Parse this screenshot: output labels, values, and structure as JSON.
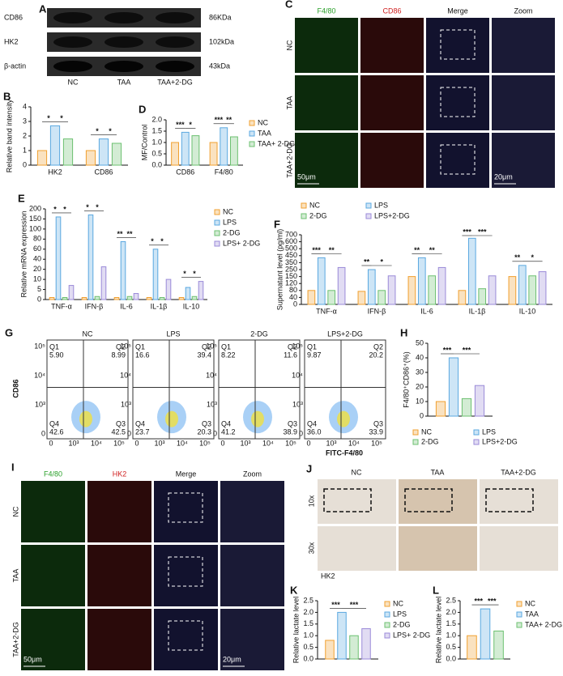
{
  "chart_data": [
    {
      "type": "bar",
      "panel": "B",
      "ylabel": "Relative band intensity",
      "categories": [
        "HK2",
        "CD86"
      ],
      "series": [
        {
          "name": "NC",
          "color": "#f0a030",
          "values": [
            1.0,
            1.0
          ]
        },
        {
          "name": "TAA",
          "color": "#5aa8e0",
          "values": [
            2.7,
            1.8
          ]
        },
        {
          "name": "TAA+2-DG",
          "color": "#6cc070",
          "values": [
            1.8,
            1.5
          ]
        }
      ],
      "ylim": [
        0,
        4
      ],
      "yticks": [
        0,
        1,
        2,
        3,
        4
      ],
      "significance": [
        [
          "*",
          "*"
        ],
        [
          "*",
          "*"
        ]
      ]
    },
    {
      "type": "bar",
      "panel": "D",
      "ylabel": "MF/Control",
      "categories": [
        "CD86",
        "F4/80"
      ],
      "series": [
        {
          "name": "NC",
          "color": "#f0a030",
          "values": [
            1.0,
            1.0
          ]
        },
        {
          "name": "TAA",
          "color": "#5aa8e0",
          "values": [
            1.45,
            1.65
          ]
        },
        {
          "name": "TAA+ 2-DG",
          "color": "#6cc070",
          "values": [
            1.3,
            1.25
          ]
        }
      ],
      "ylim": [
        0,
        2
      ],
      "yticks": [
        {
          "value": 0,
          "label": "0.0"
        },
        0.5,
        {
          "value": 1,
          "label": "1.0"
        },
        1.5,
        {
          "value": 2,
          "label": "2.0"
        }
      ],
      "legend": "right",
      "significance": [
        [
          "***",
          "*"
        ],
        [
          "***",
          "**"
        ]
      ]
    },
    {
      "type": "bar",
      "panel": "E",
      "ylabel": "Relative mRNA expression",
      "categories": [
        "TNF-α",
        "IFN-β",
        "IL-6",
        "IL-1β",
        "IL-10"
      ],
      "series": [
        {
          "name": "NC",
          "color": "#f0a030",
          "values": [
            1,
            1,
            1,
            1,
            1
          ]
        },
        {
          "name": "LPS",
          "color": "#5aa8e0",
          "values": [
            160,
            170,
            75,
            60,
            6
          ]
        },
        {
          "name": "2-DG",
          "color": "#6cc070",
          "values": [
            1,
            1.5,
            1.5,
            1,
            1.5
          ]
        },
        {
          "name": "LPS+ 2-DG",
          "color": "#9a8ad8",
          "values": [
            7,
            25,
            3,
            10,
            9
          ]
        }
      ],
      "ylim": [
        0,
        200
      ],
      "yticks": [
        0,
        5,
        10,
        20,
        40,
        60,
        80,
        100,
        150,
        200
      ],
      "axis_break": true,
      "legend": "right",
      "significance": [
        [
          "*",
          "*"
        ],
        [
          "*",
          "*"
        ],
        [
          "**",
          "**"
        ],
        [
          "*",
          "*"
        ],
        [
          "*",
          "*"
        ]
      ]
    },
    {
      "type": "bar",
      "panel": "F",
      "ylabel": "Supernatant level (pg/ml)",
      "categories": [
        "TNF-α",
        "IFN-β",
        "IL-6",
        "IL-1β",
        "IL-10"
      ],
      "series": [
        {
          "name": "NC",
          "color": "#f0a030",
          "values": [
            80,
            75,
            150,
            80,
            150
          ]
        },
        {
          "name": "LPS",
          "color": "#5aa8e0",
          "values": [
            420,
            250,
            420,
            650,
            310
          ]
        },
        {
          "name": "2-DG",
          "color": "#6cc070",
          "values": [
            80,
            80,
            160,
            90,
            160
          ]
        },
        {
          "name": "LPS+2-DG",
          "color": "#9a8ad8",
          "values": [
            280,
            160,
            280,
            160,
            220
          ]
        }
      ],
      "ylim": [
        0,
        700
      ],
      "yticks": [
        0,
        40,
        80,
        120,
        150,
        250,
        350,
        450,
        500,
        600,
        700
      ],
      "axis_break": true,
      "legend": "top",
      "significance": [
        [
          "***",
          "**"
        ],
        [
          "**",
          "*"
        ],
        [
          "**",
          "**"
        ],
        [
          "***",
          "***"
        ],
        [
          "**",
          "*"
        ]
      ]
    },
    {
      "type": "bar",
      "panel": "H",
      "ylabel": "F4/80⁺CD86⁺(%)",
      "categories": [
        null
      ],
      "series": [
        {
          "name": "NC",
          "color": "#f0a030",
          "values": [
            10
          ]
        },
        {
          "name": "LPS",
          "color": "#5aa8e0",
          "values": [
            40
          ]
        },
        {
          "name": "2-DG",
          "color": "#6cc070",
          "values": [
            12
          ]
        },
        {
          "name": "LPS+2-DG",
          "color": "#9a8ad8",
          "values": [
            21
          ]
        }
      ],
      "ylim": [
        0,
        50
      ],
      "yticks": [
        0,
        10,
        20,
        30,
        40,
        50
      ],
      "legend": "bottom",
      "significance": [
        [
          "***",
          "***"
        ]
      ]
    },
    {
      "type": "bar",
      "panel": "K",
      "ylabel": "Relative lactate level",
      "categories": [
        null
      ],
      "series": [
        {
          "name": "NC",
          "color": "#f0a030",
          "values": [
            0.8
          ]
        },
        {
          "name": "LPS",
          "color": "#5aa8e0",
          "values": [
            2.0
          ]
        },
        {
          "name": "2-DG",
          "color": "#6cc070",
          "values": [
            1.0
          ]
        },
        {
          "name": "LPS+ 2-DG",
          "color": "#9a8ad8",
          "values": [
            1.3
          ]
        }
      ],
      "ylim": [
        0,
        2.5
      ],
      "yticks": [
        {
          "value": 0,
          "label": "0.0"
        },
        0.5,
        {
          "value": 1,
          "label": "1.0"
        },
        1.5,
        {
          "value": 2,
          "label": "2.0"
        },
        2.5
      ],
      "legend": "right",
      "significance": [
        [
          "***",
          "***"
        ]
      ]
    },
    {
      "type": "bar",
      "panel": "L",
      "ylabel": "Relative lactate level",
      "categories": [
        null
      ],
      "series": [
        {
          "name": "NC",
          "color": "#f0a030",
          "values": [
            1.0
          ]
        },
        {
          "name": "TAA",
          "color": "#5aa8e0",
          "values": [
            2.15
          ]
        },
        {
          "name": "TAA+ 2-DG",
          "color": "#6cc070",
          "values": [
            1.2
          ]
        }
      ],
      "ylim": [
        0,
        2.5
      ],
      "yticks": [
        {
          "value": 0,
          "label": "0.0"
        },
        0.5,
        {
          "value": 1,
          "label": "1.0"
        },
        1.5,
        {
          "value": 2,
          "label": "2.0"
        },
        2.5
      ],
      "legend": "right",
      "significance": [
        [
          "***",
          "***"
        ]
      ]
    }
  ],
  "blot": {
    "panel": "A",
    "rows": [
      {
        "protein": "CD86",
        "size": "86KDa"
      },
      {
        "protein": "HK2",
        "size": "102kDa"
      },
      {
        "protein": "β-actin",
        "size": "43kDa"
      }
    ],
    "lanes": [
      "NC",
      "TAA",
      "TAA+2-DG"
    ]
  },
  "if_liver": {
    "panel": "C",
    "columns": [
      "F4/80",
      "CD86",
      "Merge",
      "Zoom"
    ],
    "rows": [
      "NC",
      "TAA",
      "TAA+2-DG"
    ],
    "scale_bars": [
      "50μm",
      "20μm"
    ]
  },
  "flow": {
    "panel": "G",
    "y_label": "CD86",
    "x_label": "FITC-F4/80",
    "x_ticks": [
      "0",
      "10³",
      "10⁴",
      "10⁵"
    ],
    "y_ticks": [
      "0",
      "10³",
      "10⁴",
      "10⁵"
    ],
    "plots": [
      {
        "title": "NC",
        "quadrants": [
          [
            "Q1",
            "5.90"
          ],
          [
            "Q2",
            "8.99"
          ],
          [
            "Q3",
            "42.5"
          ],
          [
            "Q4",
            "42.6"
          ]
        ]
      },
      {
        "title": "LPS",
        "quadrants": [
          [
            "Q1",
            "16.6"
          ],
          [
            "Q2",
            "39.4"
          ],
          [
            "Q3",
            "20.3"
          ],
          [
            "Q4",
            "23.7"
          ]
        ]
      },
      {
        "title": "2-DG",
        "quadrants": [
          [
            "Q1",
            "8.22"
          ],
          [
            "Q2",
            "11.6"
          ],
          [
            "Q3",
            "38.9"
          ],
          [
            "Q4",
            "41.2"
          ]
        ]
      },
      {
        "title": "LPS+2-DG",
        "quadrants": [
          [
            "Q1",
            "9.87"
          ],
          [
            "Q2",
            "20.2"
          ],
          [
            "Q3",
            "33.9"
          ],
          [
            "Q4",
            "36.0"
          ]
        ]
      }
    ]
  },
  "if_hk2": {
    "panel": "I",
    "columns": [
      "F4/80",
      "HK2",
      "Merge",
      "Zoom"
    ],
    "rows": [
      "NC",
      "TAA",
      "TAA+2-DG"
    ],
    "scale_bars": [
      "50μm",
      "20μm"
    ]
  },
  "ihc": {
    "panel": "J",
    "columns": [
      "NC",
      "TAA",
      "TAA+2-DG"
    ],
    "rows": [
      "10x",
      "30x"
    ],
    "stain": "HK2"
  }
}
